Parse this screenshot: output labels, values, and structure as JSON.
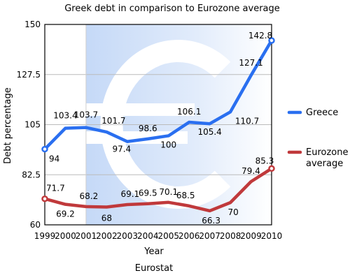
{
  "chart_data": {
    "type": "line",
    "title": "Greek debt in comparison to Eurozone average",
    "xlabel": "Year",
    "ylabel": "Debt percentage",
    "source": "Eurostat",
    "x": [
      1999,
      2000,
      2001,
      2002,
      2003,
      2004,
      2005,
      2006,
      2007,
      2008,
      2009,
      2010
    ],
    "x_ticks": [
      "1999",
      "2000",
      "2001",
      "2002",
      "2003",
      "2004",
      "2005",
      "2006",
      "2007",
      "2008",
      "2009",
      "2010"
    ],
    "ylim": [
      60,
      150
    ],
    "y_ticks": [
      "60",
      "82.5",
      "105",
      "127.5",
      "150"
    ],
    "grid": true,
    "legend_position": "right",
    "series": [
      {
        "name": "Greece",
        "color": "#2a6ff0",
        "values": [
          94,
          103.4,
          103.7,
          101.7,
          97.4,
          98.6,
          100,
          106.1,
          105.4,
          110.7,
          127.1,
          142.8
        ],
        "labels": [
          "94",
          "103.4",
          "103.7",
          "101.7",
          "97.4",
          "98.6",
          "100",
          "106.1",
          "105.4",
          "110.7",
          "127.1",
          "142.8"
        ]
      },
      {
        "name": "Eurozone average",
        "color": "#c0393b",
        "values": [
          71.7,
          69.2,
          68.2,
          68,
          69.1,
          69.5,
          70.1,
          68.5,
          66.3,
          70,
          79.4,
          85.3
        ],
        "labels": [
          "71.7",
          "69.2",
          "68.2",
          "68",
          "69.1",
          "69.5",
          "70.1",
          "68.5",
          "66.3",
          "70",
          "79.4",
          "85.3"
        ]
      }
    ],
    "legend": [
      {
        "lines": [
          "Greece"
        ],
        "color": "#2a6ff0"
      },
      {
        "lines": [
          "Eurozone",
          "average"
        ],
        "color": "#c0393b"
      }
    ],
    "background_icon": "euro-sign-icon",
    "shaded_region": {
      "from": 2001,
      "to": 2010
    }
  }
}
